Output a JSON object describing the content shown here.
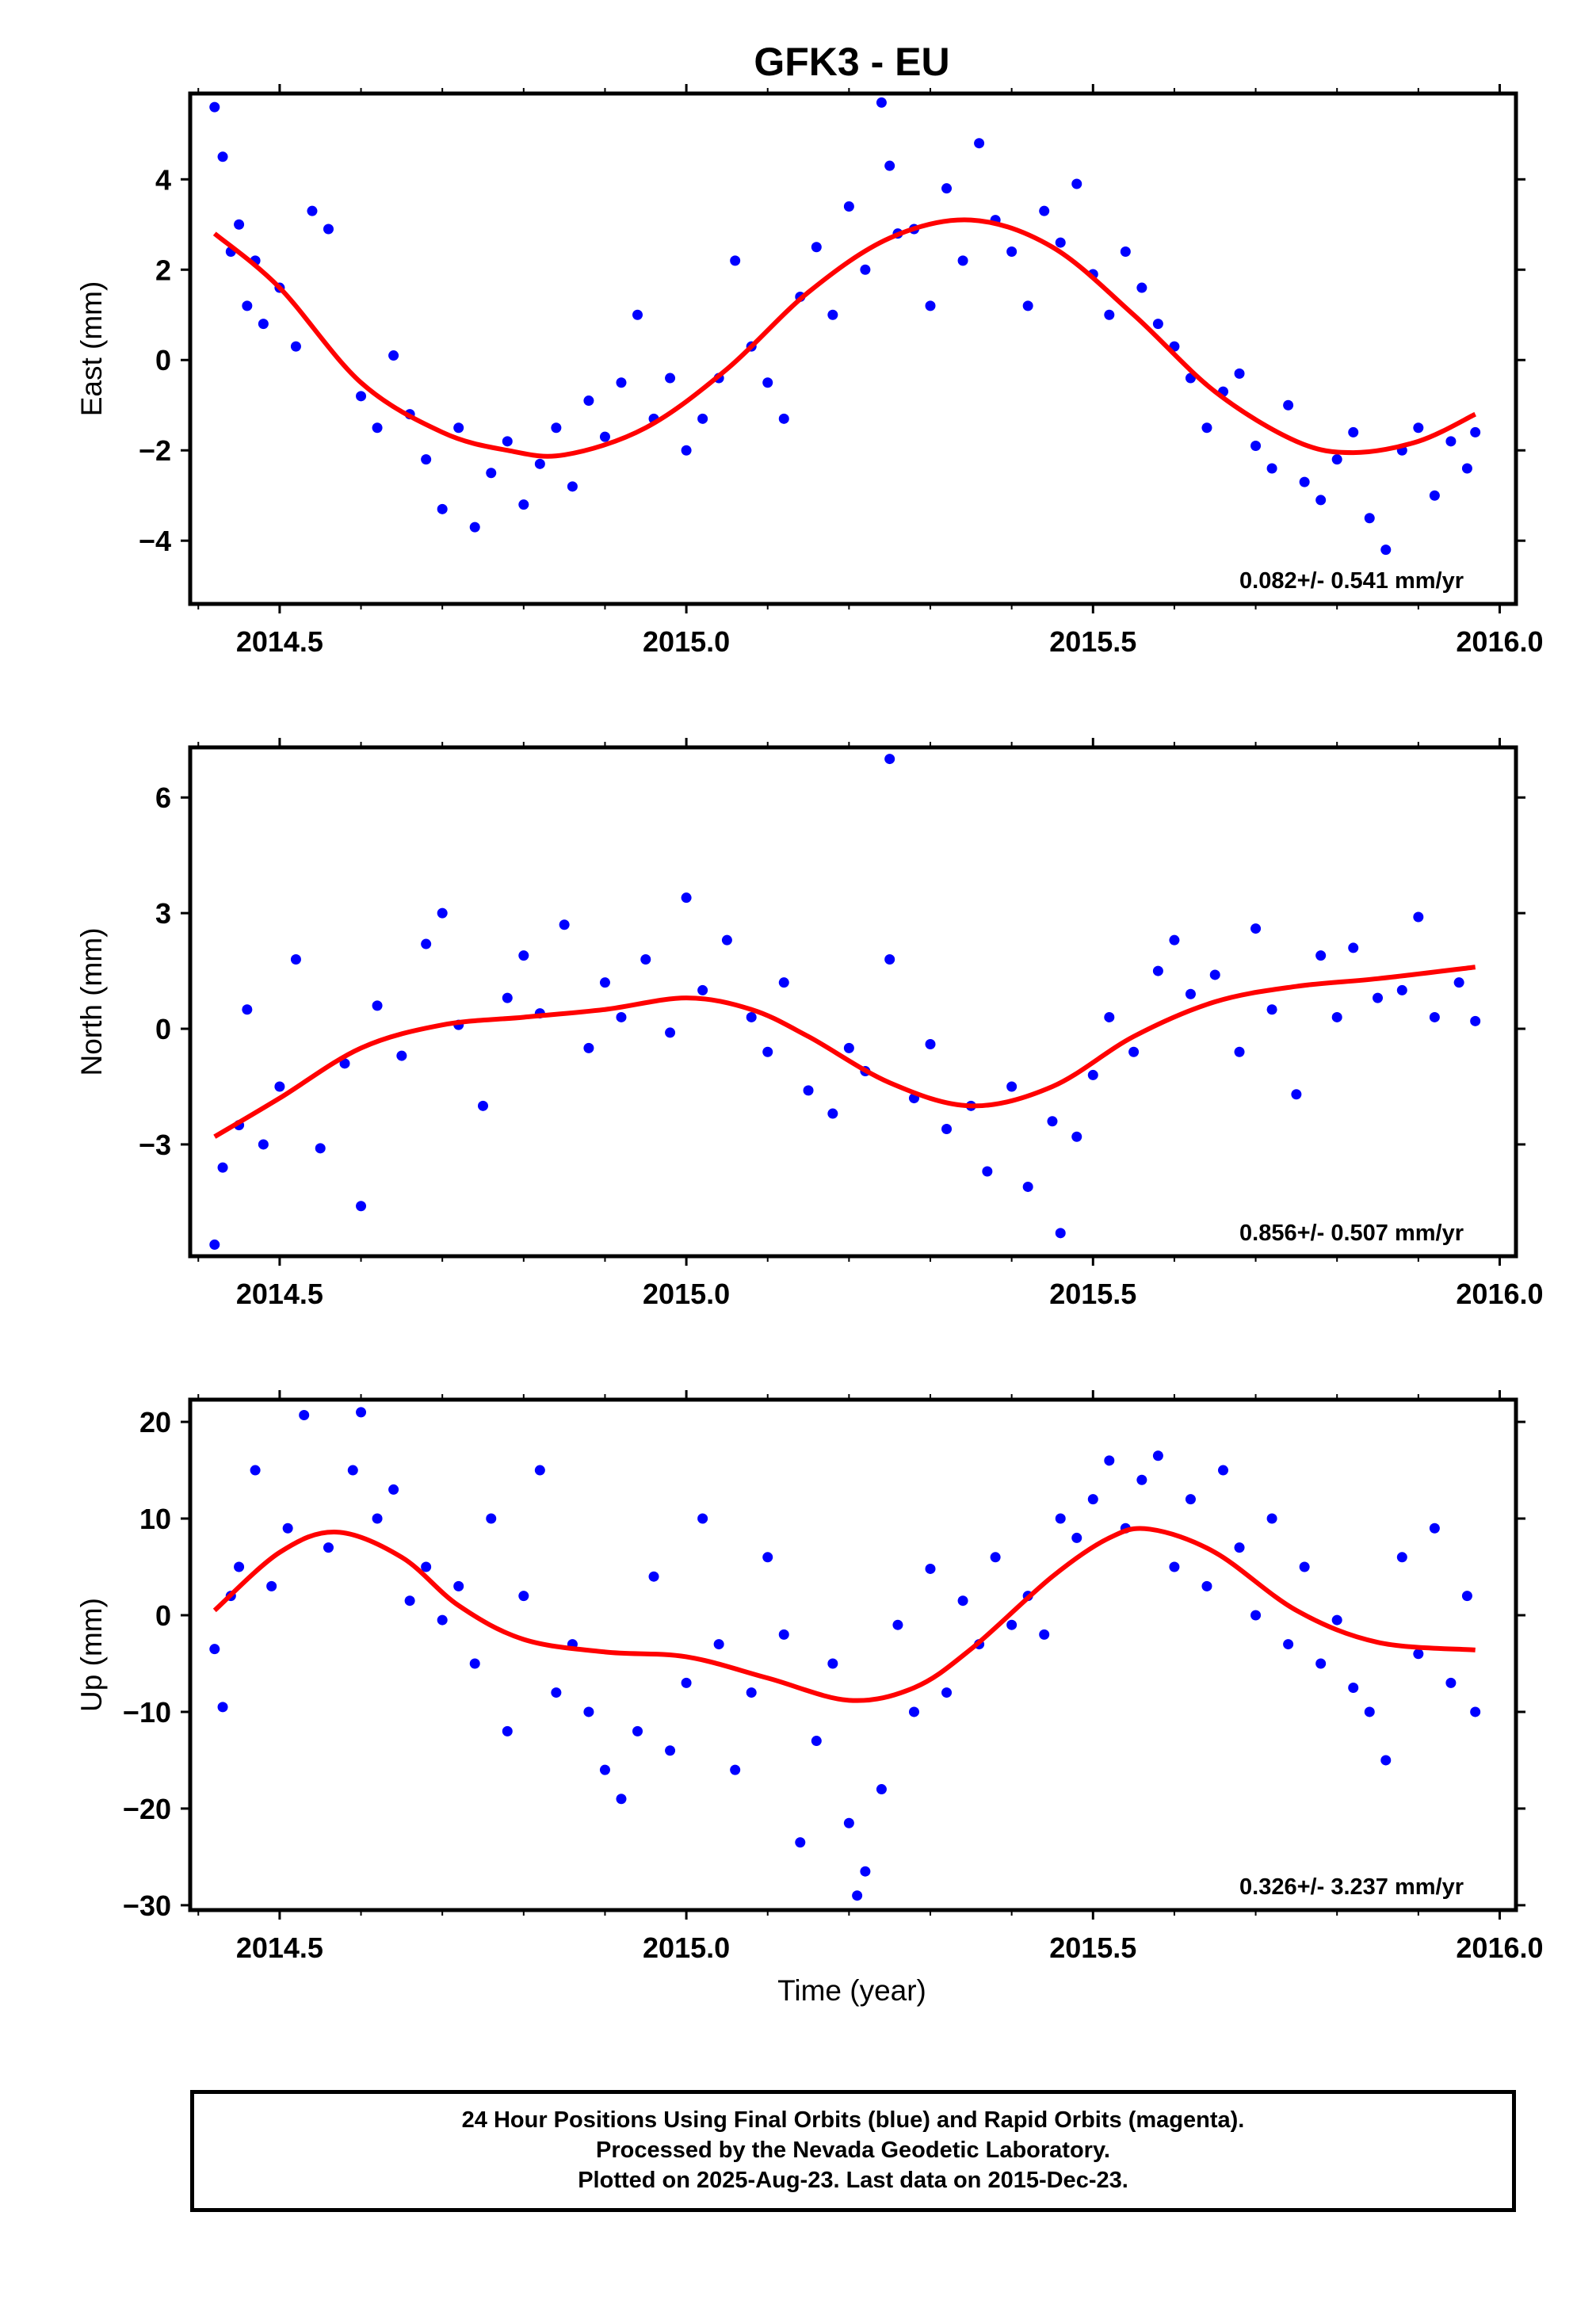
{
  "page_title": "GFK3 - EU",
  "xlabel": "Time (year)",
  "footer": {
    "line1": "24 Hour Positions Using Final Orbits (blue) and Rapid Orbits (magenta).",
    "line2": "Processed by the Nevada Geodetic Laboratory.",
    "line3": "Plotted on 2025-Aug-23. Last data on 2015-Dec-23."
  },
  "colors": {
    "points": "#0000ff",
    "fit": "#ff0000",
    "frame": "#000000"
  },
  "chart_data": [
    {
      "type": "scatter",
      "ylabel": "East (mm)",
      "xlim": [
        2014.39,
        2016.02
      ],
      "ylim": [
        -5.4,
        5.9
      ],
      "xticks": [
        "2014.5",
        "2015.0",
        "2015.5",
        "2016.0"
      ],
      "yticks": [
        "−4",
        "−2",
        "0",
        "2",
        "4"
      ],
      "rate_label": "0.082+/- 0.541 mm/yr",
      "fit": {
        "x": [
          2014.42,
          2014.5,
          2014.6,
          2014.7,
          2014.78,
          2014.85,
          2014.95,
          2015.05,
          2015.15,
          2015.25,
          2015.35,
          2015.45,
          2015.55,
          2015.65,
          2015.75,
          2015.82,
          2015.9,
          2015.97
        ],
        "y": [
          2.8,
          1.6,
          -0.5,
          -1.6,
          -2.0,
          -2.1,
          -1.5,
          -0.2,
          1.5,
          2.7,
          3.1,
          2.5,
          1.0,
          -0.7,
          -1.8,
          -2.05,
          -1.8,
          -1.2
        ]
      },
      "points": {
        "x": [
          2014.42,
          2014.43,
          2014.44,
          2014.45,
          2014.46,
          2014.47,
          2014.48,
          2014.5,
          2014.52,
          2014.54,
          2014.56,
          2014.6,
          2014.62,
          2014.64,
          2014.66,
          2014.68,
          2014.7,
          2014.72,
          2014.74,
          2014.76,
          2014.78,
          2014.8,
          2014.82,
          2014.84,
          2014.86,
          2014.88,
          2014.9,
          2014.92,
          2014.94,
          2014.96,
          2014.98,
          2015.0,
          2015.02,
          2015.04,
          2015.06,
          2015.08,
          2015.1,
          2015.12,
          2015.14,
          2015.16,
          2015.18,
          2015.2,
          2015.22,
          2015.24,
          2015.25,
          2015.26,
          2015.28,
          2015.3,
          2015.32,
          2015.34,
          2015.36,
          2015.38,
          2015.4,
          2015.42,
          2015.44,
          2015.46,
          2015.48,
          2015.5,
          2015.52,
          2015.54,
          2015.56,
          2015.58,
          2015.6,
          2015.62,
          2015.64,
          2015.66,
          2015.68,
          2015.7,
          2015.72,
          2015.74,
          2015.76,
          2015.78,
          2015.8,
          2015.82,
          2015.84,
          2015.86,
          2015.88,
          2015.9,
          2015.92,
          2015.94,
          2015.96,
          2015.97
        ],
        "y": [
          5.6,
          4.5,
          2.4,
          3.0,
          1.2,
          2.2,
          0.8,
          1.6,
          0.3,
          3.3,
          2.9,
          -0.8,
          -1.5,
          0.1,
          -1.2,
          -2.2,
          -3.3,
          -1.5,
          -3.7,
          -2.5,
          -1.8,
          -3.2,
          -2.3,
          -1.5,
          -2.8,
          -0.9,
          -1.7,
          -0.5,
          1.0,
          -1.3,
          -0.4,
          -2.0,
          -1.3,
          -0.4,
          2.2,
          0.3,
          -0.5,
          -1.3,
          1.4,
          2.5,
          1.0,
          3.4,
          2.0,
          5.7,
          4.3,
          2.8,
          2.9,
          1.2,
          3.8,
          2.2,
          4.8,
          3.1,
          2.4,
          1.2,
          3.3,
          2.6,
          3.9,
          1.9,
          1.0,
          2.4,
          1.6,
          0.8,
          0.3,
          -0.4,
          -1.5,
          -0.7,
          -0.3,
          -1.9,
          -2.4,
          -1.0,
          -2.7,
          -3.1,
          -2.2,
          -1.6,
          -3.5,
          -4.2,
          -2.0,
          -1.5,
          -3.0,
          -1.8,
          -2.4,
          -1.6
        ]
      }
    },
    {
      "type": "scatter",
      "ylabel": "North (mm)",
      "xlim": [
        2014.39,
        2016.02
      ],
      "ylim": [
        -5.9,
        7.3
      ],
      "xticks": [
        "2014.5",
        "2015.0",
        "2015.5",
        "2016.0"
      ],
      "yticks": [
        "−3",
        "0",
        "3",
        "6"
      ],
      "rate_label": "0.856+/- 0.507 mm/yr",
      "fit": {
        "x": [
          2014.42,
          2014.5,
          2014.6,
          2014.7,
          2014.8,
          2014.9,
          2015.0,
          2015.08,
          2015.15,
          2015.25,
          2015.35,
          2015.45,
          2015.55,
          2015.65,
          2015.75,
          2015.85,
          2015.97
        ],
        "y": [
          -2.8,
          -1.8,
          -0.5,
          0.1,
          0.3,
          0.5,
          0.8,
          0.5,
          -0.2,
          -1.4,
          -2.0,
          -1.5,
          -0.2,
          0.7,
          1.1,
          1.3,
          1.6
        ]
      },
      "points": {
        "x": [
          2014.42,
          2014.43,
          2014.45,
          2014.46,
          2014.48,
          2014.5,
          2014.52,
          2014.55,
          2014.58,
          2014.6,
          2014.62,
          2014.65,
          2014.68,
          2014.7,
          2014.72,
          2014.75,
          2014.78,
          2014.8,
          2014.82,
          2014.85,
          2014.88,
          2014.9,
          2014.92,
          2014.95,
          2014.98,
          2015.0,
          2015.02,
          2015.05,
          2015.08,
          2015.1,
          2015.12,
          2015.15,
          2015.18,
          2015.2,
          2015.22,
          2015.25,
          2015.25,
          2015.28,
          2015.3,
          2015.32,
          2015.35,
          2015.37,
          2015.4,
          2015.42,
          2015.45,
          2015.46,
          2015.48,
          2015.5,
          2015.52,
          2015.55,
          2015.58,
          2015.6,
          2015.62,
          2015.65,
          2015.68,
          2015.7,
          2015.72,
          2015.75,
          2015.78,
          2015.8,
          2015.82,
          2015.85,
          2015.88,
          2015.9,
          2015.92,
          2015.95,
          2015.97
        ],
        "y": [
          -5.6,
          -3.6,
          -2.5,
          0.5,
          -3.0,
          -1.5,
          1.8,
          -3.1,
          -0.9,
          -4.6,
          0.6,
          -0.7,
          2.2,
          3.0,
          0.1,
          -2.0,
          0.8,
          1.9,
          0.4,
          2.7,
          -0.5,
          1.2,
          0.3,
          1.8,
          -0.1,
          3.4,
          1.0,
          2.3,
          0.3,
          -0.6,
          1.2,
          -1.6,
          -2.2,
          -0.5,
          -1.1,
          7.0,
          1.8,
          -1.8,
          -0.4,
          -2.6,
          -2.0,
          -3.7,
          -1.5,
          -4.1,
          -2.4,
          -5.3,
          -2.8,
          -1.2,
          0.3,
          -0.6,
          1.5,
          2.3,
          0.9,
          1.4,
          -0.6,
          2.6,
          0.5,
          -1.7,
          1.9,
          0.3,
          2.1,
          0.8,
          1.0,
          2.9,
          0.3,
          1.2,
          0.2
        ]
      }
    },
    {
      "type": "scatter",
      "ylabel": "Up (mm)",
      "xlim": [
        2014.39,
        2016.02
      ],
      "ylim": [
        -30.5,
        22.3
      ],
      "xticks": [
        "2014.5",
        "2015.0",
        "2015.5",
        "2016.0"
      ],
      "yticks": [
        "−30",
        "−20",
        "−10",
        "0",
        "10",
        "20"
      ],
      "rate_label": "0.326+/- 3.237 mm/yr",
      "fit": {
        "x": [
          2014.42,
          2014.5,
          2014.57,
          2014.65,
          2014.72,
          2014.8,
          2014.9,
          2015.0,
          2015.1,
          2015.2,
          2015.28,
          2015.35,
          2015.45,
          2015.52,
          2015.57,
          2015.65,
          2015.75,
          2015.85,
          2015.97
        ],
        "y": [
          0.5,
          6.5,
          8.6,
          6.0,
          1.0,
          -2.5,
          -3.8,
          -4.3,
          -6.5,
          -8.8,
          -7.5,
          -3.5,
          4.0,
          8.0,
          8.9,
          6.5,
          0.5,
          -2.8,
          -3.6
        ]
      },
      "points": {
        "x": [
          2014.42,
          2014.43,
          2014.44,
          2014.45,
          2014.47,
          2014.49,
          2014.51,
          2014.53,
          2014.56,
          2014.59,
          2014.6,
          2014.62,
          2014.64,
          2014.66,
          2014.68,
          2014.7,
          2014.72,
          2014.74,
          2014.76,
          2014.78,
          2014.8,
          2014.82,
          2014.84,
          2014.86,
          2014.88,
          2014.9,
          2014.92,
          2014.94,
          2014.96,
          2014.98,
          2015.0,
          2015.02,
          2015.04,
          2015.06,
          2015.08,
          2015.1,
          2015.12,
          2015.14,
          2015.16,
          2015.18,
          2015.2,
          2015.21,
          2015.22,
          2015.24,
          2015.26,
          2015.28,
          2015.3,
          2015.32,
          2015.34,
          2015.36,
          2015.38,
          2015.4,
          2015.42,
          2015.44,
          2015.46,
          2015.48,
          2015.5,
          2015.52,
          2015.54,
          2015.56,
          2015.58,
          2015.6,
          2015.62,
          2015.64,
          2015.66,
          2015.68,
          2015.7,
          2015.72,
          2015.74,
          2015.76,
          2015.78,
          2015.8,
          2015.82,
          2015.84,
          2015.86,
          2015.88,
          2015.9,
          2015.92,
          2015.94,
          2015.96,
          2015.97
        ],
        "y": [
          -3.5,
          -9.5,
          2.0,
          5.0,
          15.0,
          3.0,
          9.0,
          20.7,
          7.0,
          15.0,
          21.0,
          10.0,
          13.0,
          1.5,
          5.0,
          -0.5,
          3.0,
          -5.0,
          10.0,
          -12.0,
          2.0,
          15.0,
          -8.0,
          -3.0,
          -10.0,
          -16.0,
          -19.0,
          -12.0,
          4.0,
          -14.0,
          -7.0,
          10.0,
          -3.0,
          -16.0,
          -8.0,
          6.0,
          -2.0,
          -23.5,
          -13.0,
          -5.0,
          -21.5,
          -29.0,
          -26.5,
          -18.0,
          -1.0,
          -10.0,
          4.8,
          -8.0,
          1.5,
          -3.0,
          6.0,
          -1.0,
          2.0,
          -2.0,
          10.0,
          8.0,
          12.0,
          16.0,
          9.0,
          14.0,
          16.5,
          5.0,
          12.0,
          3.0,
          15.0,
          7.0,
          0.0,
          10.0,
          -3.0,
          5.0,
          -5.0,
          -0.5,
          -7.5,
          -10.0,
          -15.0,
          6.0,
          -4.0,
          9.0,
          -7.0,
          2.0,
          -10.0
        ]
      }
    }
  ]
}
